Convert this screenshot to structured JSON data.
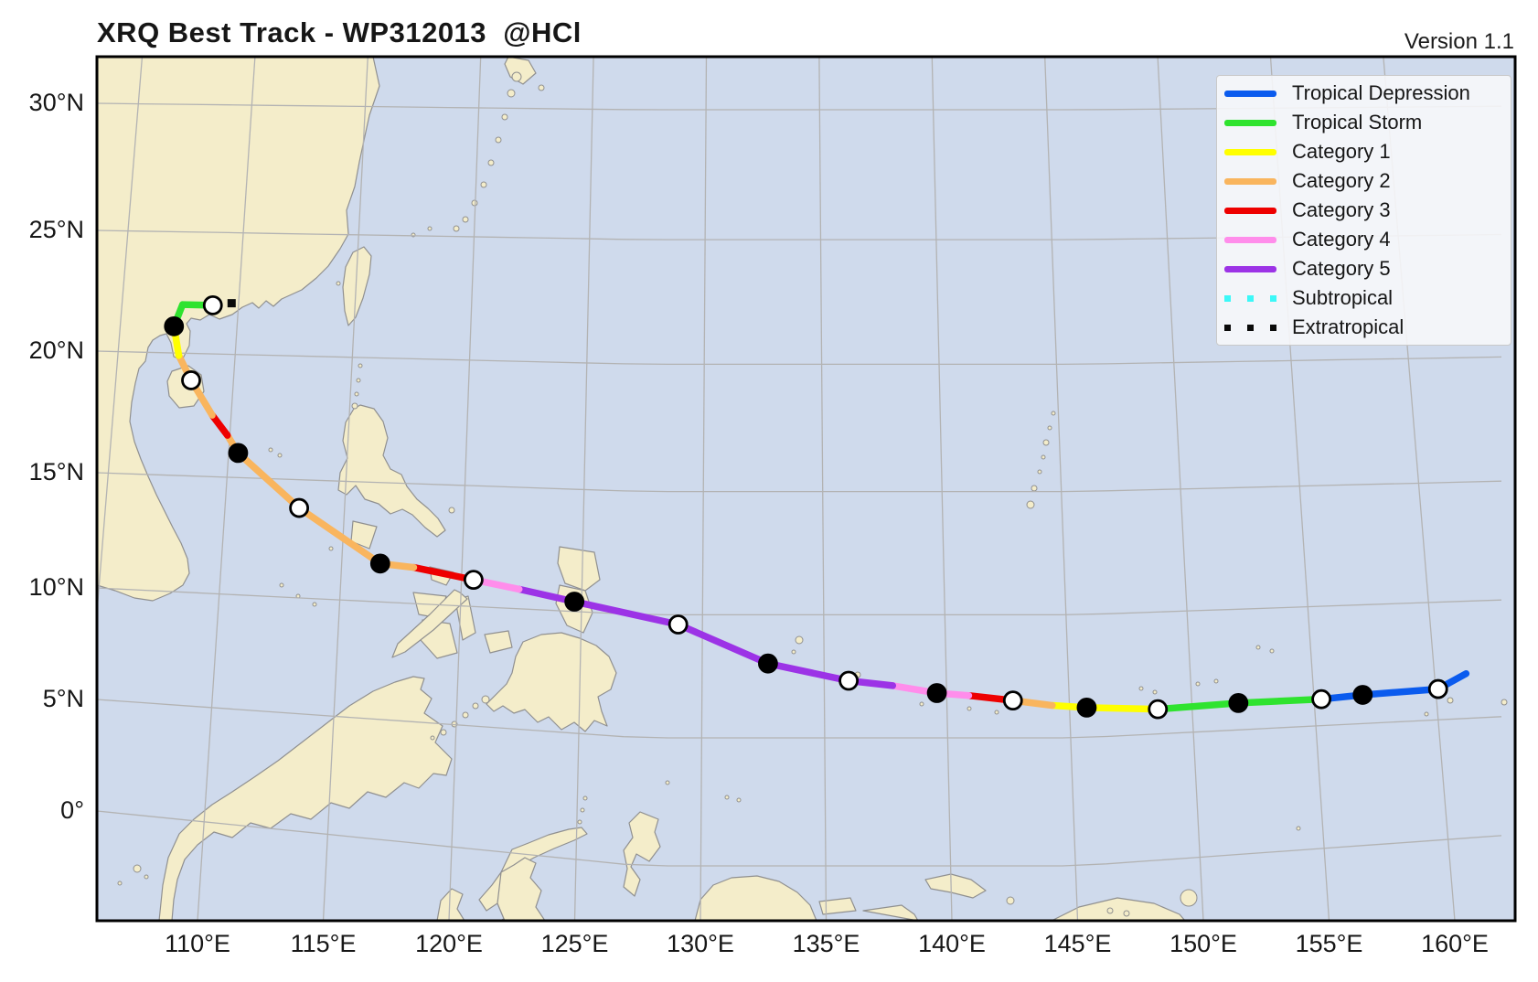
{
  "header": {
    "title": "XRQ Best Track - WP312013  @HCl",
    "version": "Version 1.1"
  },
  "chart_data": {
    "type": "line",
    "subtype": "tropical-cyclone-best-track-map",
    "title": "XRQ Best Track - WP312013  @HCl",
    "storm_id": "WP312013",
    "watermark": "@HCl",
    "x_axis": {
      "label": "",
      "ticks": [
        {
          "label": "110°E",
          "lon": 110
        },
        {
          "label": "115°E",
          "lon": 115
        },
        {
          "label": "120°E",
          "lon": 120
        },
        {
          "label": "125°E",
          "lon": 125
        },
        {
          "label": "130°E",
          "lon": 130
        },
        {
          "label": "135°E",
          "lon": 135
        },
        {
          "label": "140°E",
          "lon": 140
        },
        {
          "label": "145°E",
          "lon": 145
        },
        {
          "label": "150°E",
          "lon": 150
        },
        {
          "label": "155°E",
          "lon": 155
        },
        {
          "label": "160°E",
          "lon": 160
        }
      ]
    },
    "y_axis": {
      "label": "",
      "ticks": [
        {
          "label": "0°",
          "lat": 0
        },
        {
          "label": "5°N",
          "lat": 5
        },
        {
          "label": "10°N",
          "lat": 10
        },
        {
          "label": "15°N",
          "lat": 15
        },
        {
          "label": "20°N",
          "lat": 20
        },
        {
          "label": "25°N",
          "lat": 25
        },
        {
          "label": "30°N",
          "lat": 30
        }
      ]
    },
    "legend_position": "upper right",
    "legend": [
      {
        "label": "Tropical Depression",
        "key": "TD",
        "style": "line"
      },
      {
        "label": "Tropical Storm",
        "key": "TS",
        "style": "line"
      },
      {
        "label": "Category 1",
        "key": "C1",
        "style": "line"
      },
      {
        "label": "Category 2",
        "key": "C2",
        "style": "line"
      },
      {
        "label": "Category 3",
        "key": "C3",
        "style": "line"
      },
      {
        "label": "Category 4",
        "key": "C4",
        "style": "line"
      },
      {
        "label": "Category 5",
        "key": "C5",
        "style": "line"
      },
      {
        "label": "Subtropical",
        "key": "SS",
        "style": "dots"
      },
      {
        "label": "Extratropical",
        "key": "EX",
        "style": "dots"
      }
    ],
    "colors": {
      "TD": "#0b5bee",
      "TS": "#2fe32f",
      "C1": "#ffff00",
      "C2": "#f9b55e",
      "C3": "#ee0000",
      "C4": "#ff8deb",
      "C5": "#9c33e6",
      "SS": "#3cf8f8",
      "EX": "#0a0a0a"
    },
    "map_colors": {
      "ocean": "#cfdaec",
      "land": "#f4edca",
      "coast": "#909090",
      "grid": "#b3b3b3",
      "frame": "#000000"
    },
    "marker_legend": {
      "black_dot": "position (00Z)",
      "white_dot": "position (12Z)"
    },
    "track": [
      {
        "lon": 161.3,
        "lat": 6.9,
        "cat": "TD",
        "dot": null
      },
      {
        "lon": 160.1,
        "lat": 6.3,
        "cat": "TD",
        "dot": "white"
      },
      {
        "lon": 157.0,
        "lat": 6.2,
        "cat": "TD",
        "dot": "black"
      },
      {
        "lon": 155.3,
        "lat": 6.1,
        "cat": "TD",
        "dot": "white"
      },
      {
        "lon": 151.9,
        "lat": 6.1,
        "cat": "TS",
        "dot": "black"
      },
      {
        "lon": 148.6,
        "lat": 6.0,
        "cat": "TS",
        "dot": "white"
      },
      {
        "lon": 145.7,
        "lat": 6.2,
        "cat": "C1",
        "dot": "black"
      },
      {
        "lon": 144.3,
        "lat": 6.3,
        "cat": "C1",
        "dot": null
      },
      {
        "lon": 142.7,
        "lat": 6.5,
        "cat": "C2",
        "dot": "white"
      },
      {
        "lon": 140.9,
        "lat": 6.7,
        "cat": "C3",
        "dot": null
      },
      {
        "lon": 139.6,
        "lat": 6.8,
        "cat": "C4",
        "dot": "black"
      },
      {
        "lon": 137.8,
        "lat": 7.1,
        "cat": "C4",
        "dot": null
      },
      {
        "lon": 136.0,
        "lat": 7.3,
        "cat": "C5",
        "dot": "white"
      },
      {
        "lon": 132.7,
        "lat": 8.0,
        "cat": "C5",
        "dot": "black"
      },
      {
        "lon": 129.0,
        "lat": 9.6,
        "cat": "C5",
        "dot": "white"
      },
      {
        "lon": 124.7,
        "lat": 10.4,
        "cat": "C5",
        "dot": "black"
      },
      {
        "lon": 122.4,
        "lat": 10.8,
        "cat": "C5",
        "dot": null
      },
      {
        "lon": 120.5,
        "lat": 11.1,
        "cat": "C4",
        "dot": "white"
      },
      {
        "lon": 118.0,
        "lat": 11.5,
        "cat": "C3",
        "dot": null
      },
      {
        "lon": 116.6,
        "lat": 11.6,
        "cat": "C2",
        "dot": "black"
      },
      {
        "lon": 113.1,
        "lat": 13.8,
        "cat": "C2",
        "dot": "white"
      },
      {
        "lon": 110.4,
        "lat": 16.0,
        "cat": "C2",
        "dot": "black"
      },
      {
        "lon": 109.9,
        "lat": 16.7,
        "cat": "C2",
        "dot": null
      },
      {
        "lon": 109.2,
        "lat": 17.5,
        "cat": "C3",
        "dot": null
      },
      {
        "lon": 108.2,
        "lat": 18.9,
        "cat": "C2",
        "dot": "white"
      },
      {
        "lon": 107.6,
        "lat": 19.9,
        "cat": "C2",
        "dot": null
      },
      {
        "lon": 107.3,
        "lat": 21.1,
        "cat": "C1",
        "dot": "black"
      },
      {
        "lon": 107.6,
        "lat": 22.0,
        "cat": "TS",
        "dot": null
      },
      {
        "lon": 108.9,
        "lat": 22.0,
        "cat": "TS",
        "dot": "white"
      },
      {
        "lon": 109.7,
        "lat": 22.1,
        "cat": "EX",
        "dot": "square"
      }
    ]
  }
}
